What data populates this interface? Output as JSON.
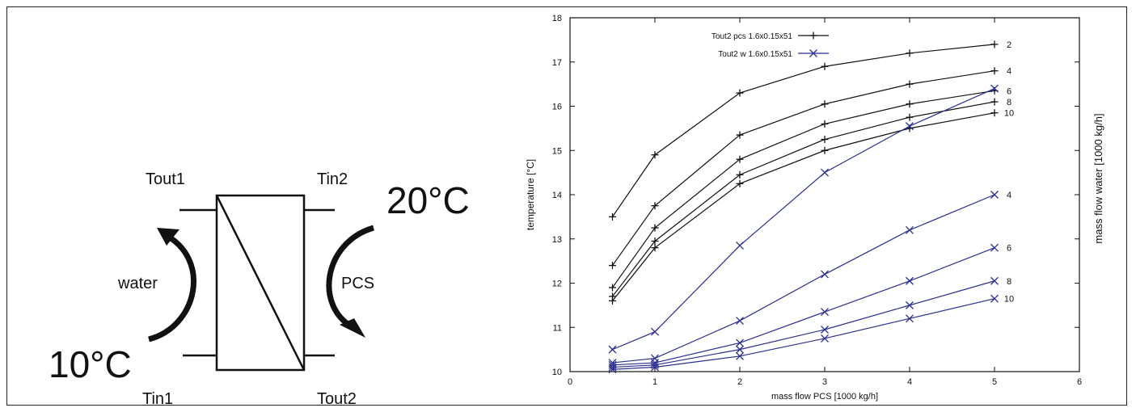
{
  "diagram": {
    "labels": {
      "tout1": "Tout1",
      "tin2": "Tin2",
      "tin1": "Tin1",
      "tout2": "Tout2",
      "water": "water",
      "pcs": "PCS",
      "temp_hot": "20°C",
      "temp_cold": "10°C"
    }
  },
  "chart_data": {
    "type": "line",
    "title": "",
    "xlabel": "mass flow PCS [1000 kg/h]",
    "ylabel": "temperature  [°C]",
    "y2label": "mass flow water  [1000 kg/h]",
    "xlim": [
      0,
      6
    ],
    "ylim": [
      10,
      18
    ],
    "xticks": [
      0,
      1,
      2,
      3,
      4,
      5,
      6
    ],
    "yticks": [
      10,
      11,
      12,
      13,
      14,
      15,
      16,
      17,
      18
    ],
    "grid": false,
    "legend_position": "top-left",
    "legend": [
      {
        "label": "Tout2 pcs  1.6x0.15x51",
        "color": "#111111",
        "marker": "plus"
      },
      {
        "label": "Tout2 w  1.6x0.15x51",
        "color": "#2a2f8f",
        "marker": "x"
      }
    ],
    "series": [
      {
        "group": "pcs",
        "label": "2",
        "x": [
          0.5,
          1,
          2,
          3,
          4,
          5
        ],
        "y": [
          13.5,
          14.9,
          16.3,
          16.9,
          17.2,
          17.4
        ]
      },
      {
        "group": "pcs",
        "label": "4",
        "x": [
          0.5,
          1,
          2,
          3,
          4,
          5
        ],
        "y": [
          12.4,
          13.75,
          15.35,
          16.05,
          16.5,
          16.8
        ]
      },
      {
        "group": "pcs",
        "label": "6",
        "x": [
          0.5,
          1,
          2,
          3,
          4,
          5
        ],
        "y": [
          11.9,
          13.25,
          14.8,
          15.6,
          16.05,
          16.35
        ]
      },
      {
        "group": "pcs",
        "label": "8",
        "x": [
          0.5,
          1,
          2,
          3,
          4,
          5
        ],
        "y": [
          11.7,
          12.95,
          14.45,
          15.25,
          15.75,
          16.1
        ]
      },
      {
        "group": "pcs",
        "label": "10",
        "x": [
          0.5,
          1,
          2,
          3,
          4,
          5
        ],
        "y": [
          11.6,
          12.8,
          14.25,
          15.0,
          15.5,
          15.85
        ]
      },
      {
        "group": "w",
        "label": "",
        "x": [
          0.5,
          1,
          2,
          3,
          4,
          5
        ],
        "y": [
          10.5,
          10.9,
          12.85,
          14.5,
          15.55,
          16.4
        ]
      },
      {
        "group": "w",
        "label": "4",
        "x": [
          0.5,
          1,
          2,
          3,
          4,
          5
        ],
        "y": [
          10.2,
          10.3,
          11.15,
          12.2,
          13.2,
          14.0
        ]
      },
      {
        "group": "w",
        "label": "6",
        "x": [
          0.5,
          1,
          2,
          3,
          4,
          5
        ],
        "y": [
          10.15,
          10.2,
          10.65,
          11.35,
          12.05,
          12.8
        ]
      },
      {
        "group": "w",
        "label": "8",
        "x": [
          0.5,
          1,
          2,
          3,
          4,
          5
        ],
        "y": [
          10.1,
          10.15,
          10.5,
          10.95,
          11.5,
          12.05
        ]
      },
      {
        "group": "w",
        "label": "10",
        "x": [
          0.5,
          1,
          2,
          3,
          4,
          5
        ],
        "y": [
          10.05,
          10.1,
          10.35,
          10.75,
          11.2,
          11.65
        ]
      }
    ],
    "colors": {
      "pcs": "#111111",
      "w": "#2a2f8f"
    }
  }
}
